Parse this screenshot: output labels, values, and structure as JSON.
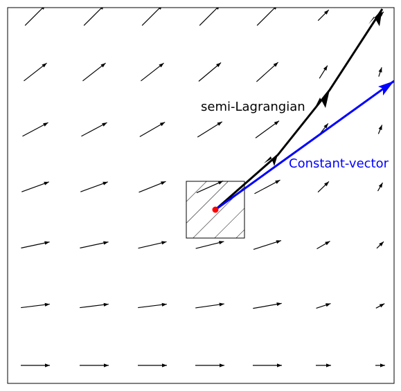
{
  "labels": {
    "semi_lagrangian": "semi-Lagrangian",
    "constant_vector": "Constant-vector"
  },
  "colors": {
    "field": "#000000",
    "semi_lagrangian": "#000000",
    "constant_vector": "#0000ff",
    "origin_point": "#ff0000",
    "frame": "#000000"
  },
  "vector_field": {
    "description_free": true,
    "rows": [
      {
        "row": 0,
        "angles_deg": [
          45,
          45,
          45,
          45,
          45,
          45,
          45
        ]
      },
      {
        "row": 1,
        "angles_deg": [
          38,
          38,
          38,
          40,
          42,
          58,
          72
        ]
      },
      {
        "row": 2,
        "angles_deg": [
          28,
          28,
          30,
          32,
          36,
          52,
          68
        ]
      },
      {
        "row": 3,
        "angles_deg": [
          20,
          20,
          22,
          24,
          28,
          44,
          60
        ]
      },
      {
        "row": 4,
        "angles_deg": [
          12,
          12,
          13,
          14,
          18,
          30,
          44
        ]
      },
      {
        "row": 5,
        "angles_deg": [
          7,
          7,
          7,
          8,
          10,
          18,
          28
        ]
      },
      {
        "row": 6,
        "angles_deg": [
          0,
          0,
          0,
          0,
          0,
          0,
          0
        ]
      }
    ]
  },
  "icons": {
    "field_arrow": "arrow-icon",
    "origin": "dot-icon",
    "cell": "hatched-square-icon"
  }
}
